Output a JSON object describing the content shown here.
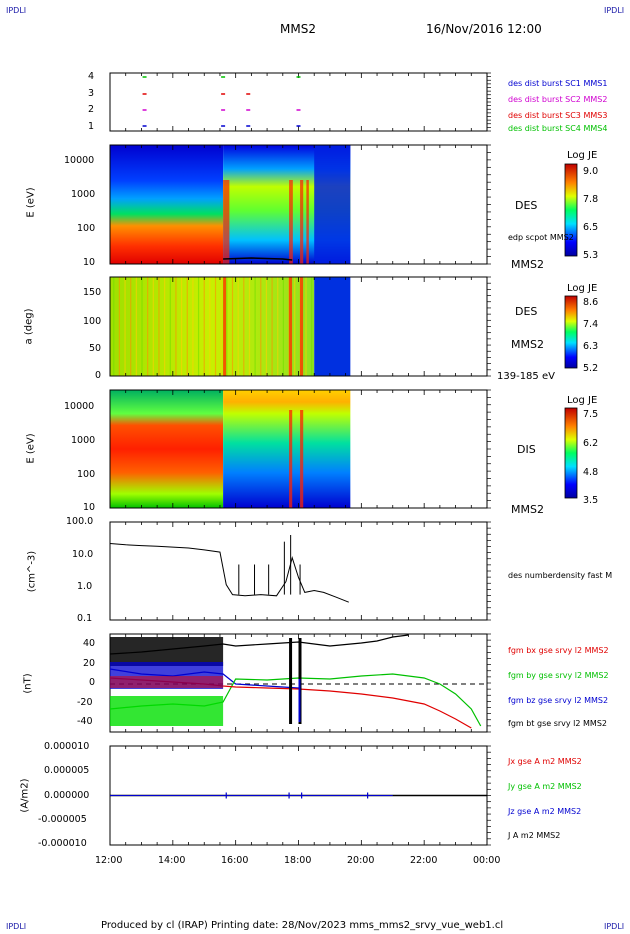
{
  "corners": {
    "tl": "IPDLI",
    "tr": "IPDLI",
    "bl": "IPDLI",
    "br": "IPDLI"
  },
  "header": {
    "spacecraft": "MMS2",
    "datetime": "16/Nov/2016 12:00"
  },
  "footer": {
    "text": "Produced by cl (IRAP)   Printing date: 28/Nov/2023   mms_mms2_srvy_vue_web1.cl"
  },
  "colors": {
    "blue": "#0000d0",
    "magenta": "#d000d0",
    "red": "#e00000",
    "green": "#00c000",
    "black": "#000000"
  },
  "chart_data": [
    {
      "type": "scatter",
      "id": "burst",
      "x_range": [
        "12:00",
        "00:00"
      ],
      "y_ticks": [
        "1",
        "2",
        "3",
        "4"
      ],
      "legend": [
        {
          "name": "des dist burst SC1 MMS1",
          "color": "#0000d0"
        },
        {
          "name": "des dist burst SC2 MMS2",
          "color": "#d000d0"
        },
        {
          "name": "des dist burst SC3 MMS3",
          "color": "#e00000"
        },
        {
          "name": "des dist burst SC4 MMS4",
          "color": "#00c000"
        }
      ],
      "marks": [
        {
          "level": 4,
          "times": [
            13.1,
            15.6,
            18.0
          ],
          "color": "#00c000"
        },
        {
          "level": 3,
          "times": [
            13.1,
            15.6,
            16.4
          ],
          "color": "#e00000"
        },
        {
          "level": 2,
          "times": [
            13.1,
            15.6,
            16.4,
            18.0
          ],
          "color": "#d000d0"
        },
        {
          "level": 1,
          "times": [
            13.1,
            15.6,
            16.4,
            18.0
          ],
          "color": "#0000d0"
        }
      ]
    },
    {
      "type": "heatmap",
      "id": "des_energy",
      "ylabel": "E (eV)",
      "y_ticks": [
        "10",
        "100",
        "1000",
        "10000"
      ],
      "label": "DES",
      "label2": "MMS2",
      "inline_label": "edp scpot MMS2",
      "colorbar": {
        "title": "Log JE",
        "ticks": [
          "9.0",
          "7.8",
          "6.5",
          "5.3"
        ]
      }
    },
    {
      "type": "heatmap",
      "id": "des_pitch",
      "ylabel": "a (deg)",
      "y_ticks": [
        "0",
        "50",
        "100",
        "150"
      ],
      "label": "DES",
      "label2": "MMS2",
      "energy_band": "139-185 eV",
      "colorbar": {
        "title": "Log JE",
        "ticks": [
          "8.6",
          "7.4",
          "6.3",
          "5.2"
        ]
      }
    },
    {
      "type": "heatmap",
      "id": "dis_energy",
      "ylabel": "E (eV)",
      "y_ticks": [
        "10",
        "100",
        "1000",
        "10000"
      ],
      "label": "DIS",
      "label2": "MMS2",
      "colorbar": {
        "title": "Log JE",
        "ticks": [
          "7.5",
          "6.2",
          "4.8",
          "3.5"
        ]
      }
    },
    {
      "type": "line",
      "id": "density",
      "log_y": true,
      "ylabel": "(cm^-3)",
      "y_ticks": [
        "0.1",
        "1.0",
        "10.0",
        "100.0"
      ],
      "series": [
        {
          "name": "des numberdensity fast M",
          "color": "#000000",
          "x": [
            12.0,
            12.5,
            13.0,
            13.5,
            14.0,
            14.5,
            15.0,
            15.5,
            15.7,
            15.9,
            16.3,
            16.8,
            17.3,
            17.6,
            17.8,
            18.0,
            18.2,
            18.5,
            18.8,
            19.2,
            19.6
          ],
          "y": [
            22,
            20,
            19,
            18,
            17,
            16,
            14,
            12,
            1.2,
            0.6,
            0.55,
            0.6,
            0.55,
            1.5,
            8,
            2,
            0.7,
            0.8,
            0.7,
            0.5,
            0.35
          ]
        }
      ]
    },
    {
      "type": "line",
      "id": "bfield",
      "ylabel": "(nT)",
      "y_ticks": [
        "-40",
        "-20",
        "0",
        "20",
        "40"
      ],
      "ylim": [
        -48,
        50
      ],
      "series": [
        {
          "name": "fgm bx gse srvy l2 MMS2",
          "color": "#e00000",
          "x": [
            12.0,
            13.0,
            14.0,
            15.0,
            15.6,
            16.0,
            17.0,
            18.0,
            19.0,
            20.0,
            21.0,
            22.0,
            22.5,
            23.0,
            23.5
          ],
          "y": [
            6,
            4,
            2,
            0,
            -2,
            -3,
            -4,
            -5,
            -7,
            -10,
            -14,
            -20,
            -27,
            -35,
            -44
          ]
        },
        {
          "name": "fgm by gse srvy l2 MMS2",
          "color": "#00c000",
          "x": [
            12.0,
            13.0,
            14.0,
            15.0,
            15.6,
            16.0,
            17.0,
            18.0,
            19.0,
            20.0,
            21.0,
            22.0,
            22.5,
            23.0,
            23.5,
            23.8
          ],
          "y": [
            -25,
            -22,
            -20,
            -22,
            -18,
            5,
            4,
            6,
            5,
            8,
            10,
            6,
            0,
            -10,
            -25,
            -42
          ]
        },
        {
          "name": "fgm bz gse srvy l2 MMS2",
          "color": "#0000d0",
          "x": [
            12.0,
            13.0,
            14.0,
            15.0,
            15.6,
            16.0,
            17.0,
            18.0
          ],
          "y": [
            15,
            10,
            8,
            12,
            10,
            0,
            -2,
            -4
          ]
        },
        {
          "name": "fgm bt gse srvy l2 MMS2",
          "color": "#000000",
          "x": [
            12.0,
            13.0,
            14.0,
            15.0,
            15.6,
            16.0,
            17.0,
            18.0,
            19.0,
            20.0,
            20.5,
            21.0,
            21.5
          ],
          "y": [
            30,
            32,
            35,
            38,
            40,
            38,
            40,
            42,
            38,
            41,
            43,
            47,
            49
          ]
        }
      ]
    },
    {
      "type": "line",
      "id": "current",
      "ylabel": "(A/m2)",
      "y_ticks": [
        "-0.000010",
        "-0.000005",
        "0.000000",
        "0.000005",
        "0.000010"
      ],
      "series": [
        {
          "name": "Jx gse A m2 MMS2",
          "color": "#e00000"
        },
        {
          "name": "Jy gse A m2 MMS2",
          "color": "#00c000"
        },
        {
          "name": "Jz gse A m2 MMS2",
          "color": "#0000d0"
        },
        {
          "name": "J A m2 MMS2",
          "color": "#000000"
        }
      ]
    }
  ],
  "x_ticks": [
    "12:00",
    "14:00",
    "16:00",
    "18:00",
    "20:00",
    "22:00",
    "00:00"
  ]
}
